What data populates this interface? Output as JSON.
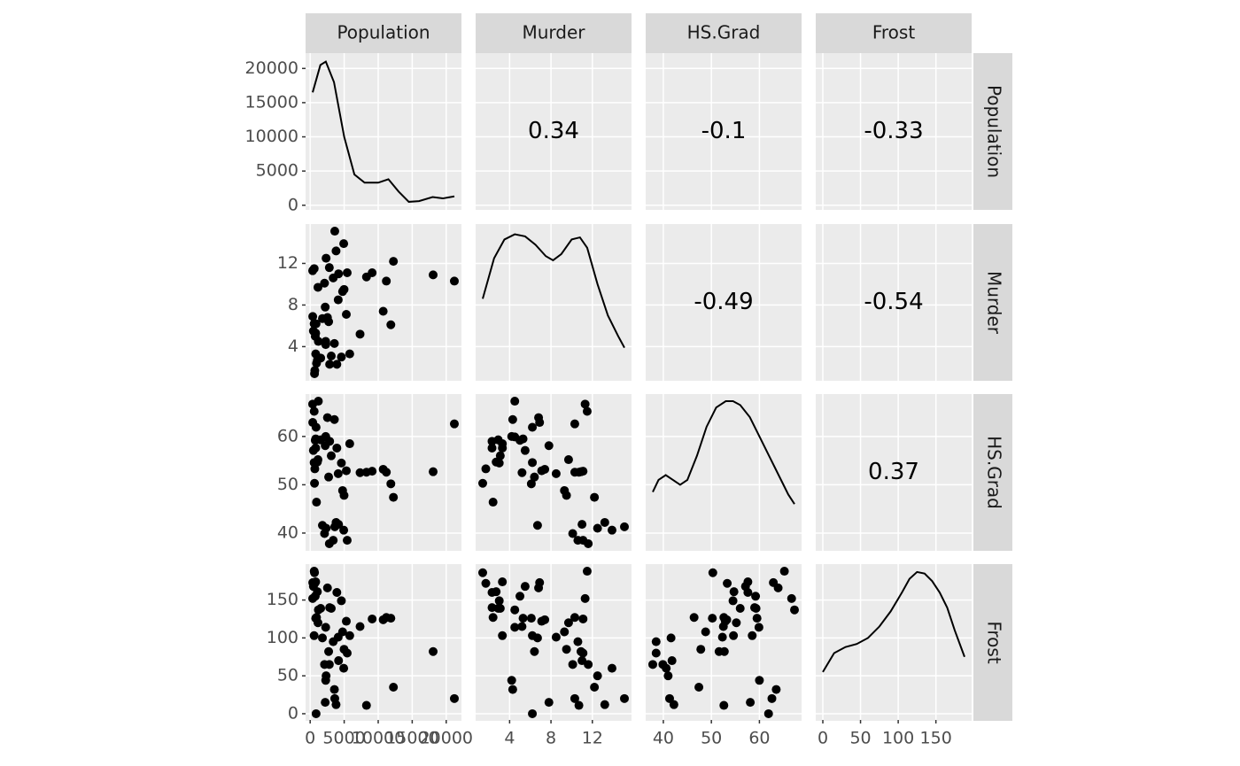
{
  "chart_data": {
    "type": "scatter-matrix",
    "point_color": "#000000",
    "panel_color": "#ebebeb",
    "grid": true,
    "variables": [
      {
        "name": "Population",
        "lim": [
          -677,
          22240
        ],
        "ticks": [
          0,
          5000,
          10000,
          15000,
          20000
        ],
        "values": [
          3615,
          365,
          2212,
          2110,
          21198,
          2541,
          3100,
          579,
          8277,
          4931,
          868,
          813,
          11197,
          5313,
          2861,
          2280,
          3387,
          3806,
          1058,
          4122,
          5814,
          9111,
          3921,
          2341,
          4767,
          746,
          1544,
          590,
          812,
          7333,
          1144,
          18076,
          5441,
          637,
          10735,
          2715,
          2284,
          11860,
          931,
          2816,
          681,
          4173,
          12237,
          1203,
          472,
          4981,
          3559,
          1799,
          4589,
          376
        ],
        "density": {
          "x": [
            365,
            1500,
            2300,
            3500,
            5000,
            6500,
            8000,
            10000,
            11500,
            13000,
            14500,
            16000,
            18000,
            19500,
            21198
          ],
          "y": [
            16500,
            20500,
            21000,
            18000,
            10000,
            4500,
            3300,
            3300,
            3800,
            2000,
            500,
            600,
            1200,
            1000,
            1300
          ]
        },
        "correlations": [
          0.34,
          -0.1,
          -0.33
        ]
      },
      {
        "name": "Murder",
        "lim": [
          0.715,
          15.785
        ],
        "ticks": [
          4,
          8,
          12
        ],
        "values": [
          15.1,
          11.3,
          7.8,
          10.1,
          10.3,
          6.8,
          3.1,
          6.2,
          10.7,
          13.9,
          6.2,
          5.3,
          10.3,
          7.1,
          2.3,
          4.5,
          10.6,
          13.2,
          2.7,
          8.5,
          3.3,
          11.1,
          2.3,
          12.5,
          9.3,
          5.0,
          2.9,
          11.5,
          3.3,
          5.2,
          9.7,
          10.9,
          11.1,
          1.4,
          7.4,
          6.4,
          4.2,
          6.1,
          2.4,
          11.6,
          1.7,
          11.0,
          12.2,
          4.5,
          5.5,
          9.5,
          4.3,
          6.7,
          3.0,
          6.9
        ],
        "density": {
          "x": [
            1.4,
            2.5,
            3.5,
            4.5,
            5.5,
            6.5,
            7.5,
            8.2,
            9,
            10,
            10.8,
            11.5,
            12.5,
            13.5,
            14.5,
            15.1
          ],
          "y": [
            8.6,
            12.5,
            14.3,
            14.8,
            14.6,
            13.8,
            12.7,
            12.3,
            12.9,
            14.3,
            14.5,
            13.5,
            10,
            7,
            5,
            3.9
          ]
        },
        "correlations": [
          -0.49,
          -0.54
        ]
      },
      {
        "name": "HS.Grad",
        "lim": [
          36.325,
          68.775
        ],
        "ticks": [
          40,
          50,
          60
        ],
        "values": [
          41.3,
          66.7,
          58.1,
          39.9,
          62.6,
          63.9,
          56.0,
          54.6,
          52.6,
          40.6,
          61.9,
          59.5,
          52.6,
          52.9,
          59.0,
          59.9,
          38.5,
          42.2,
          54.7,
          52.3,
          58.5,
          52.8,
          57.6,
          41.0,
          48.8,
          59.2,
          59.3,
          65.2,
          57.6,
          52.5,
          55.2,
          52.7,
          38.5,
          50.3,
          53.2,
          51.6,
          60.0,
          50.2,
          46.4,
          37.8,
          53.3,
          41.8,
          47.4,
          67.3,
          57.1,
          47.8,
          63.5,
          41.6,
          54.5,
          62.9
        ],
        "density": {
          "x": [
            37.8,
            39,
            40.5,
            42,
            43.5,
            45,
            47,
            49,
            51,
            53,
            54.5,
            56,
            58,
            60,
            62,
            64,
            66,
            67.3
          ],
          "y": [
            48.5,
            51,
            52,
            51,
            50,
            51,
            56,
            62,
            66,
            67.3,
            67.3,
            66.5,
            64,
            60,
            56,
            52,
            48,
            46
          ]
        },
        "correlations": [
          0.37
        ]
      },
      {
        "name": "Frost",
        "lim": [
          -9.4,
          197.4
        ],
        "ticks": [
          0,
          50,
          100,
          150
        ],
        "values": [
          20,
          152,
          15,
          65,
          20,
          166,
          139,
          103,
          11,
          60,
          0,
          126,
          127,
          122,
          140,
          114,
          95,
          12,
          161,
          101,
          103,
          125,
          160,
          50,
          108,
          155,
          139,
          188,
          174,
          115,
          120,
          82,
          80,
          186,
          124,
          82,
          44,
          126,
          127,
          65,
          172,
          70,
          35,
          137,
          168,
          85,
          32,
          100,
          149,
          173
        ],
        "density": {
          "x": [
            0,
            15,
            30,
            45,
            60,
            75,
            90,
            105,
            115,
            125,
            135,
            145,
            155,
            165,
            175,
            188
          ],
          "y": [
            55,
            80,
            88,
            92,
            100,
            115,
            135,
            160,
            178,
            187,
            185,
            175,
            160,
            140,
            110,
            75
          ]
        },
        "correlations": []
      }
    ]
  }
}
